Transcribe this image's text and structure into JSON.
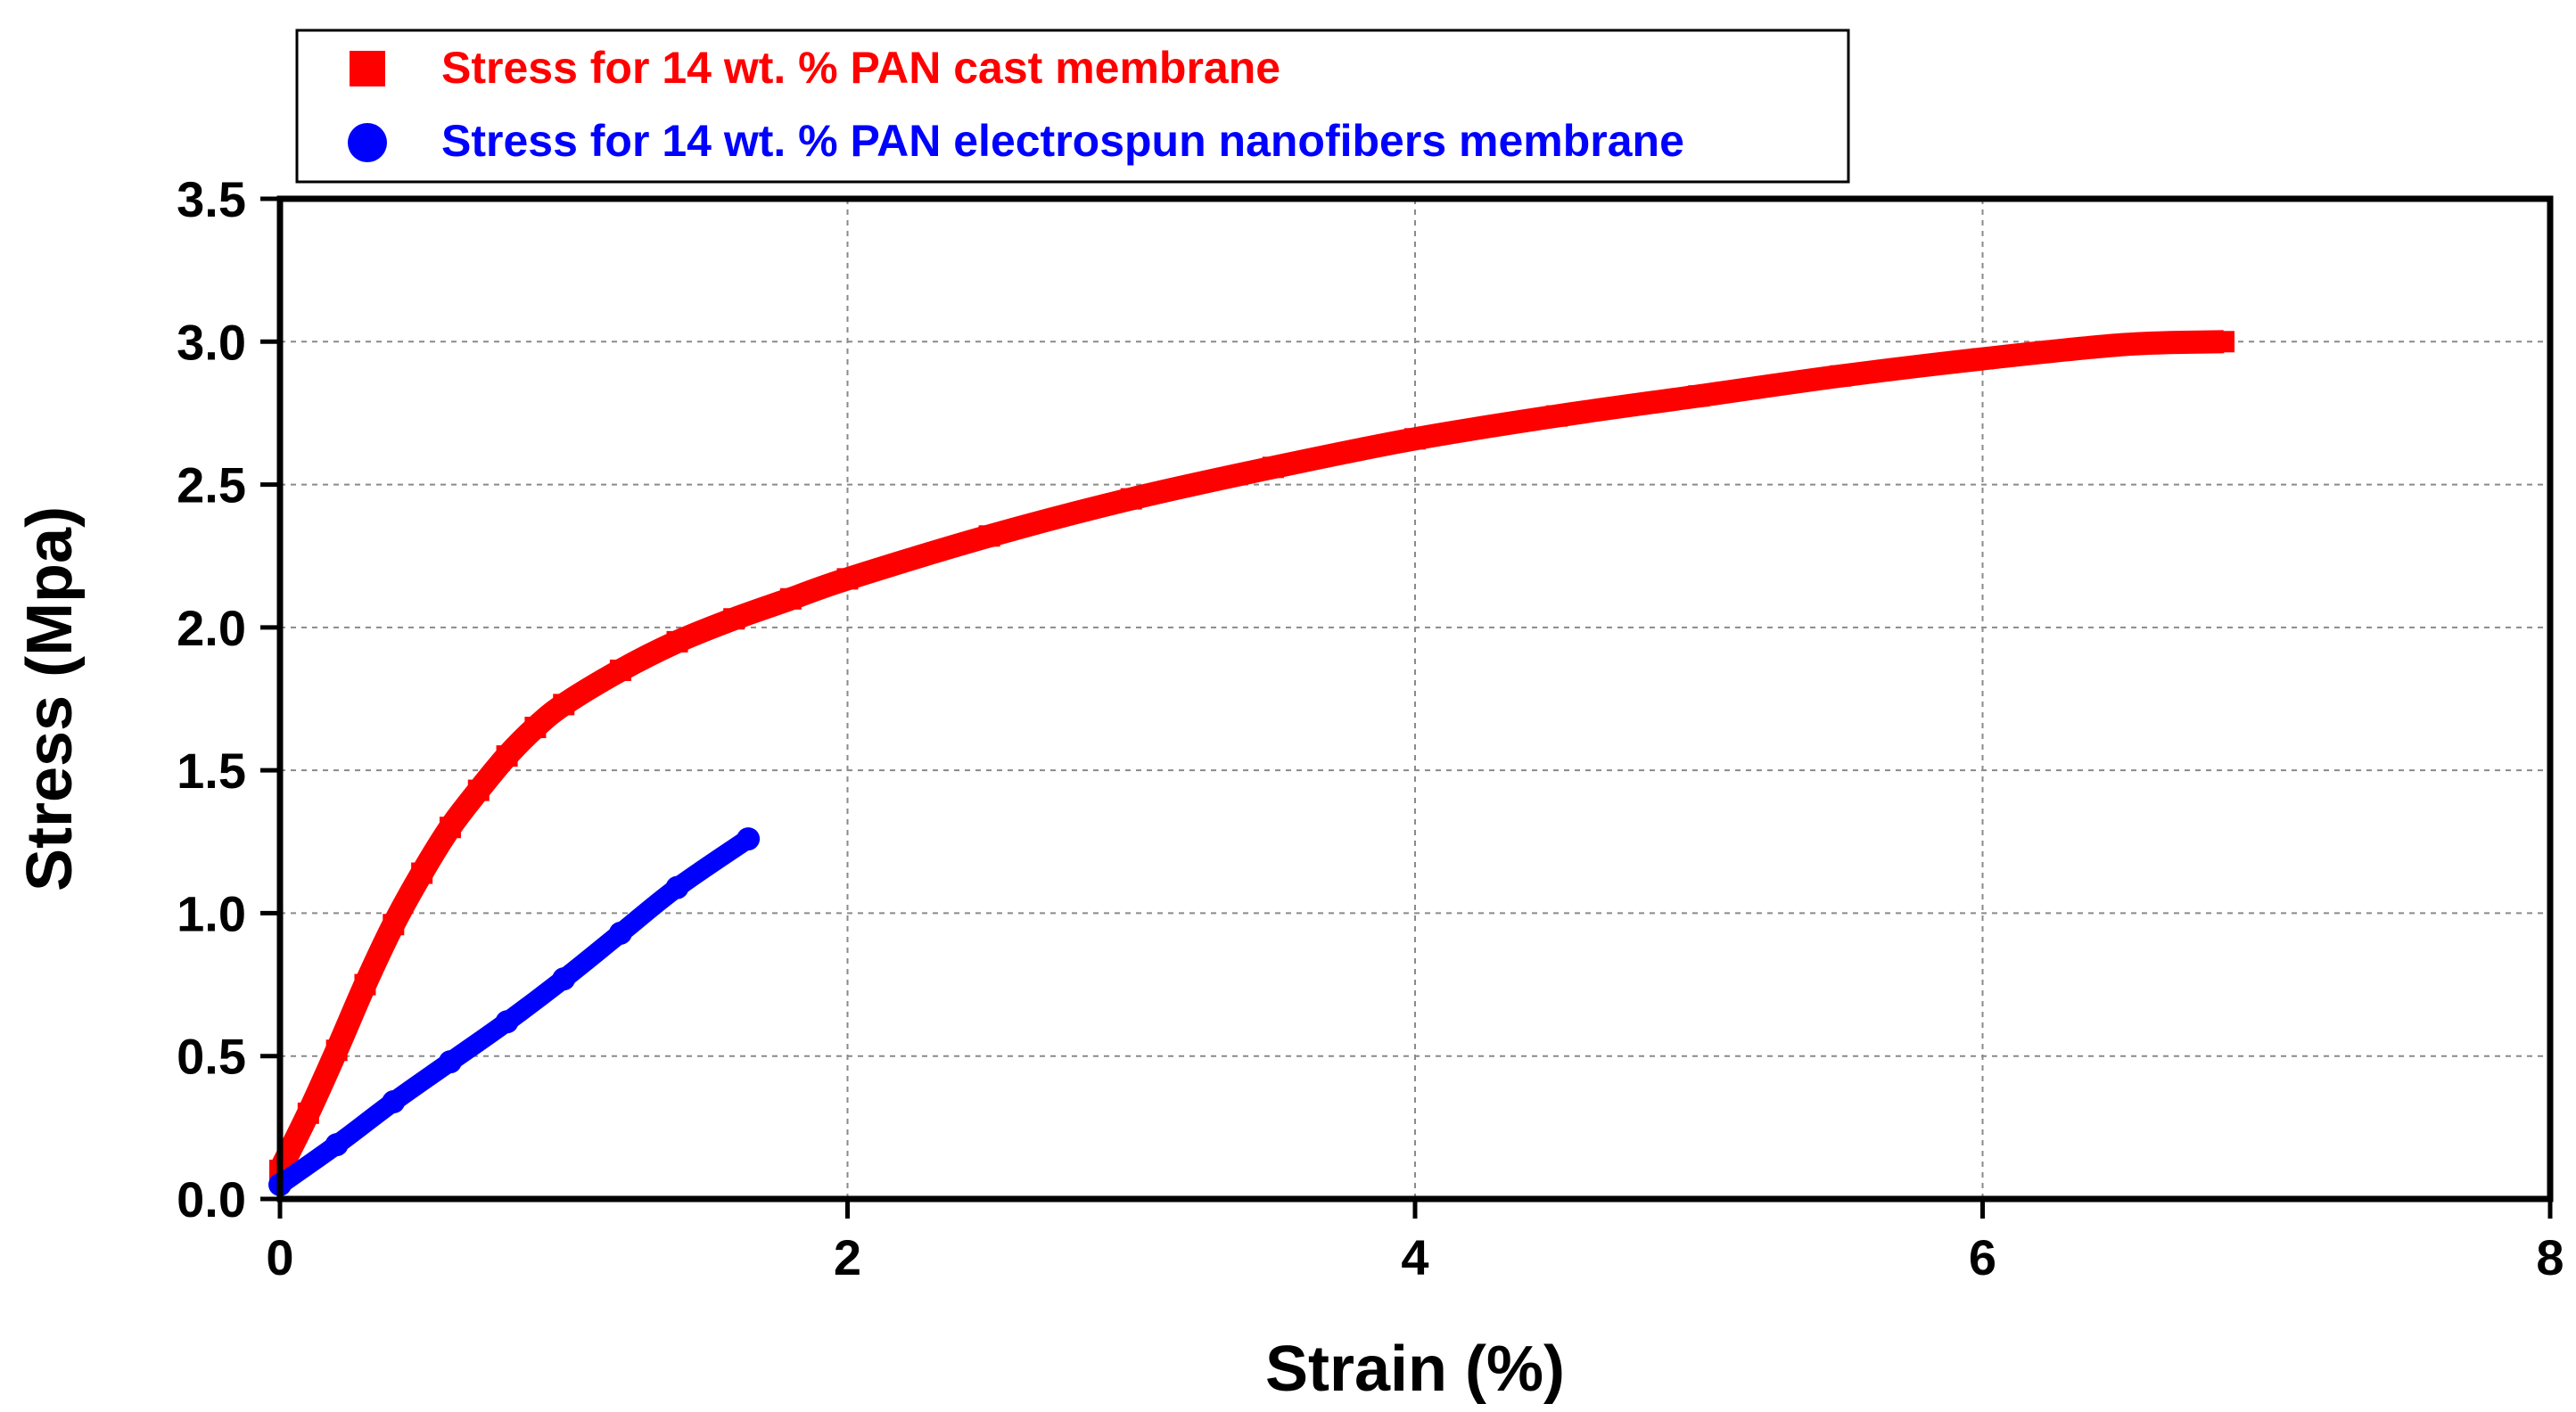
{
  "chart_data": {
    "type": "line",
    "title": "",
    "xlabel": "Strain (%)",
    "ylabel": "Stress (Mpa)",
    "xlim": [
      0,
      8
    ],
    "ylim": [
      0,
      3.5
    ],
    "xticks": [
      0,
      2,
      4,
      6,
      8
    ],
    "xtick_labels": [
      "0",
      "2",
      "4",
      "6",
      "8"
    ],
    "yticks": [
      0,
      0.5,
      1.0,
      1.5,
      2.0,
      2.5,
      3.0,
      3.5
    ],
    "ytick_labels": [
      "0.0",
      "0.5",
      "1.0",
      "1.5",
      "2.0",
      "2.5",
      "3.0",
      "3.5"
    ],
    "grid": true,
    "legend_position": "top-left, above plot",
    "series": [
      {
        "name": "Stress for 14 wt. % PAN cast membrane",
        "color": "#ff0000",
        "marker": "square",
        "x": [
          0,
          0.1,
          0.2,
          0.3,
          0.4,
          0.5,
          0.6,
          0.7,
          0.8,
          0.9,
          1.0,
          1.2,
          1.4,
          1.6,
          1.8,
          2.0,
          2.5,
          3.0,
          3.5,
          4.0,
          4.5,
          5.0,
          5.5,
          6.0,
          6.5,
          6.85
        ],
        "y": [
          0.1,
          0.3,
          0.52,
          0.75,
          0.96,
          1.14,
          1.3,
          1.43,
          1.55,
          1.65,
          1.73,
          1.85,
          1.95,
          2.03,
          2.1,
          2.17,
          2.32,
          2.45,
          2.56,
          2.66,
          2.74,
          2.81,
          2.88,
          2.94,
          2.99,
          3.0
        ]
      },
      {
        "name": "Stress for 14 wt. % PAN electrospun nanofibers membrane",
        "color": "#0000ff",
        "marker": "circle",
        "x": [
          0,
          0.2,
          0.4,
          0.6,
          0.8,
          1.0,
          1.2,
          1.4,
          1.65
        ],
        "y": [
          0.05,
          0.19,
          0.34,
          0.48,
          0.62,
          0.77,
          0.93,
          1.09,
          1.26
        ]
      }
    ]
  }
}
